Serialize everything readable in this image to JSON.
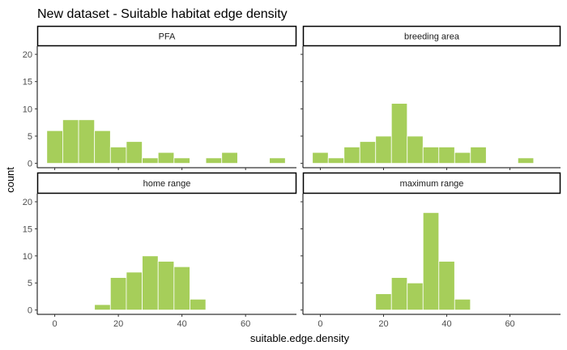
{
  "chart_data": {
    "type": "bar",
    "title": "New dataset - Suitable habitat edge density",
    "xlabel": "suitable.edge.density",
    "ylabel": "count",
    "bin_width": 5,
    "first_bin_start": -2.5,
    "xlim": [
      -5.5,
      76
    ],
    "ylim": [
      -0.8,
      21.5
    ],
    "x_ticks": [
      0,
      20,
      40,
      60
    ],
    "y_ticks": [
      0,
      5,
      10,
      15,
      20
    ],
    "bar_color": "#a6ce5a",
    "bar_outline": "#ffffff",
    "grid": false,
    "facets": [
      {
        "name": "PFA",
        "values": [
          6,
          8,
          8,
          6,
          3,
          4,
          1,
          2,
          1,
          0,
          1,
          2,
          0,
          0,
          1
        ]
      },
      {
        "name": "breeding area",
        "values": [
          2,
          1,
          3,
          4,
          5,
          11,
          5,
          3,
          3,
          2,
          3,
          0,
          0,
          1
        ]
      },
      {
        "name": "home range",
        "values": [
          0,
          0,
          0,
          1,
          6,
          7,
          10,
          9,
          8,
          2
        ]
      },
      {
        "name": "maximum range",
        "values": [
          0,
          0,
          0,
          0,
          3,
          6,
          5,
          18,
          9,
          2
        ]
      }
    ]
  }
}
